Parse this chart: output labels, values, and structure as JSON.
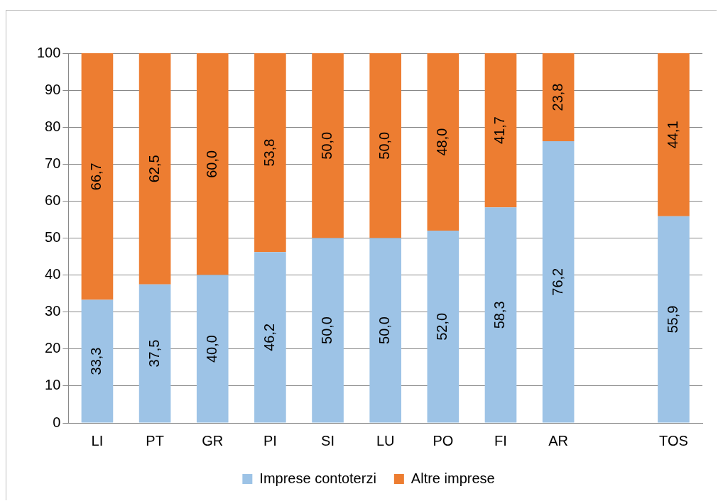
{
  "chart_data": {
    "type": "bar",
    "stacked": true,
    "categories": [
      "LI",
      "PT",
      "GR",
      "PI",
      "SI",
      "LU",
      "PO",
      "FI",
      "AR",
      null,
      "TOS"
    ],
    "series": [
      {
        "name": "Imprese contoterzi",
        "color": "#9dc3e6",
        "values": [
          33.3,
          37.5,
          40.0,
          46.2,
          50.0,
          50.0,
          52.0,
          58.3,
          76.2,
          null,
          55.9
        ],
        "value_labels": [
          "33,3",
          "37,5",
          "40,0",
          "46,2",
          "50,0",
          "50,0",
          "52,0",
          "58,3",
          "76,2",
          null,
          "55,9"
        ]
      },
      {
        "name": "Altre imprese",
        "color": "#ed7d31",
        "values": [
          66.7,
          62.5,
          60.0,
          53.8,
          50.0,
          50.0,
          48.0,
          41.7,
          23.8,
          null,
          44.1
        ],
        "value_labels": [
          "66,7",
          "62,5",
          "60,0",
          "53,8",
          "50,0",
          "50,0",
          "48,0",
          "41,7",
          "23,8",
          null,
          "44,1"
        ]
      }
    ],
    "ylim": [
      0,
      100
    ],
    "yticks": [
      0,
      10,
      20,
      30,
      40,
      50,
      60,
      70,
      80,
      90,
      100
    ],
    "grid": "y",
    "legend": "bottom"
  }
}
